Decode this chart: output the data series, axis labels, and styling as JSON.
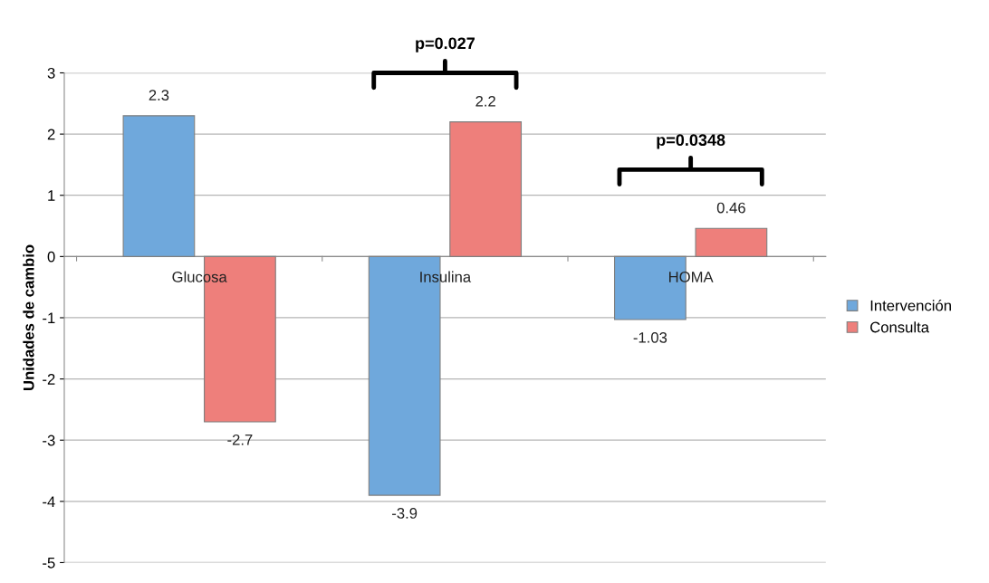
{
  "chart_data": {
    "type": "bar",
    "ylabel": "Unidades de cambio",
    "categories": [
      "Glucosa",
      "Insulina",
      "HOMA"
    ],
    "series": [
      {
        "name": "Intervención",
        "color": "#6fa8dc",
        "values": [
          2.3,
          -3.9,
          -1.03
        ]
      },
      {
        "name": "Consulta",
        "color": "#ee7f7b",
        "values": [
          -2.7,
          2.2,
          0.46
        ]
      }
    ],
    "ylim": [
      -5,
      3
    ],
    "yticks": [
      -5,
      -4,
      -3,
      -2,
      -1,
      0,
      1,
      2,
      3
    ],
    "grid": "y",
    "legend": "right",
    "data_labels": true,
    "annotations": [
      "p=0.027",
      "p=0.0348"
    ]
  }
}
